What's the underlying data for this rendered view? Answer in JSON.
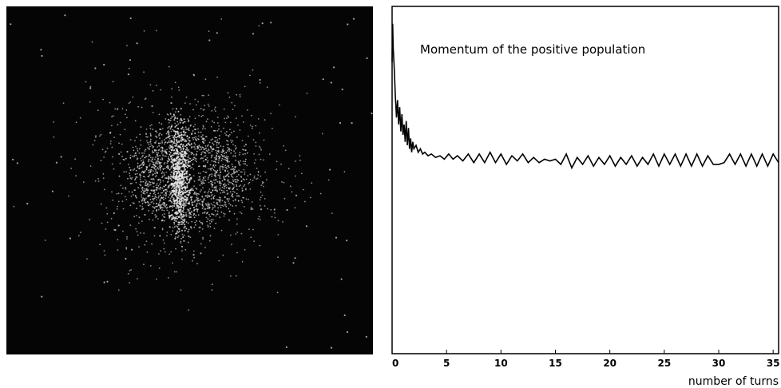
{
  "chart_data": [
    {
      "type": "scatter",
      "title": "",
      "background": "#050505",
      "point_color": "#e6e6e6",
      "description_none": ""
    },
    {
      "type": "line",
      "title": "Momentum of the positive population",
      "xlabel": "number of turns",
      "ylabel": "",
      "xlim": [
        0,
        35.5
      ],
      "ylim": [
        0,
        1
      ],
      "xticks": [
        0,
        5,
        10,
        15,
        20,
        25,
        30,
        35
      ],
      "line_color": "#000000",
      "series": [
        {
          "x": [
            0,
            0.05,
            0.1,
            0.2,
            0.3,
            0.4,
            0.5,
            0.6,
            0.7,
            0.8,
            0.9,
            1.0,
            1.1,
            1.2,
            1.3,
            1.4,
            1.5,
            1.6,
            1.7,
            1.8,
            1.9,
            2.0,
            2.2,
            2.4,
            2.6,
            2.8,
            3.0,
            3.3,
            3.6,
            4.0,
            4.4,
            4.8,
            5.2,
            5.6,
            6.0,
            6.5,
            7.0,
            7.5,
            8.0,
            8.5,
            9.0,
            9.5,
            10.0,
            10.5,
            11.0,
            11.5,
            12.0,
            12.5,
            13.0,
            13.5,
            14.0,
            14.5,
            15.0,
            15.5,
            16.0,
            16.5,
            17.0,
            17.5,
            18.0,
            18.5,
            19.0,
            19.5,
            20.0,
            20.5,
            21.0,
            21.5,
            22.0,
            22.5,
            23.0,
            23.5,
            24.0,
            24.5,
            25.0,
            25.5,
            26.0,
            26.5,
            27.0,
            27.5,
            28.0,
            28.5,
            29.0,
            29.5,
            30.0,
            30.5,
            31.0,
            31.5,
            32.0,
            32.5,
            33.0,
            33.5,
            34.0,
            34.5,
            35.0,
            35.5
          ],
          "y": [
            0.84,
            0.95,
            0.88,
            0.82,
            0.74,
            0.68,
            0.73,
            0.66,
            0.71,
            0.64,
            0.69,
            0.63,
            0.66,
            0.61,
            0.67,
            0.6,
            0.65,
            0.59,
            0.62,
            0.58,
            0.61,
            0.59,
            0.6,
            0.58,
            0.59,
            0.575,
            0.58,
            0.57,
            0.575,
            0.565,
            0.57,
            0.56,
            0.575,
            0.56,
            0.57,
            0.555,
            0.575,
            0.55,
            0.575,
            0.55,
            0.58,
            0.55,
            0.575,
            0.545,
            0.57,
            0.555,
            0.575,
            0.55,
            0.565,
            0.55,
            0.56,
            0.555,
            0.56,
            0.545,
            0.575,
            0.535,
            0.565,
            0.545,
            0.57,
            0.54,
            0.565,
            0.545,
            0.57,
            0.54,
            0.565,
            0.545,
            0.57,
            0.54,
            0.565,
            0.545,
            0.575,
            0.54,
            0.575,
            0.545,
            0.575,
            0.54,
            0.575,
            0.54,
            0.575,
            0.54,
            0.57,
            0.545,
            0.545,
            0.55,
            0.575,
            0.545,
            0.575,
            0.54,
            0.575,
            0.54,
            0.575,
            0.54,
            0.575,
            0.55
          ]
        }
      ]
    }
  ]
}
